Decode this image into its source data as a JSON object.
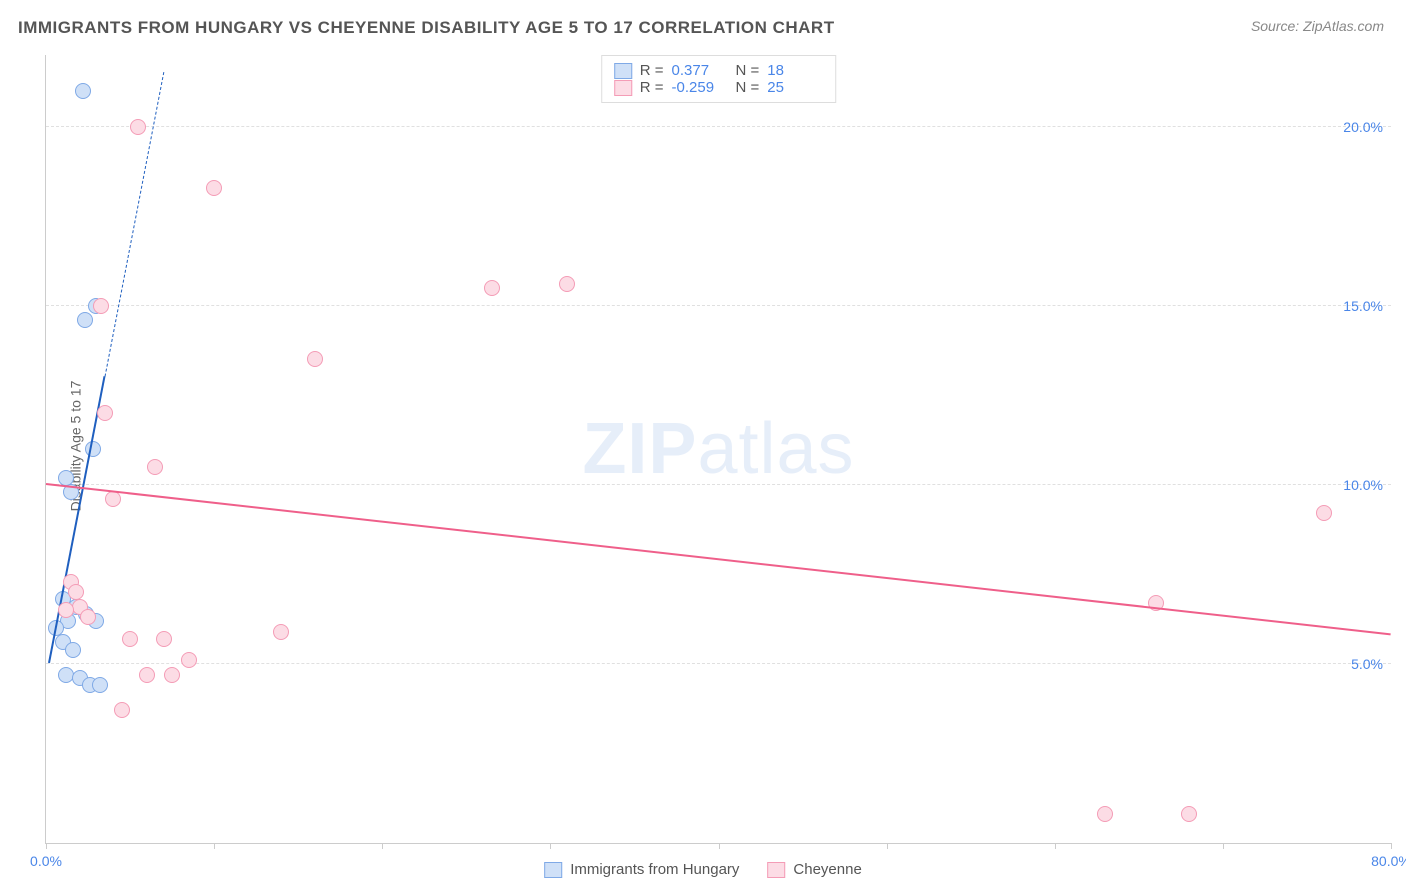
{
  "title": "IMMIGRANTS FROM HUNGARY VS CHEYENNE DISABILITY AGE 5 TO 17 CORRELATION CHART",
  "source": "Source: ZipAtlas.com",
  "ylabel": "Disability Age 5 to 17",
  "watermark_zip": "ZIP",
  "watermark_atlas": "atlas",
  "chart": {
    "type": "scatter",
    "background_color": "#ffffff",
    "grid_color": "#e0e0e0",
    "axis_color": "#cccccc",
    "label_color": "#4a86e8",
    "xlim": [
      0,
      80
    ],
    "ylim": [
      0,
      22
    ],
    "xtick_positions": [
      0,
      10,
      20,
      30,
      40,
      50,
      60,
      70,
      80
    ],
    "xtick_labels": {
      "0": "0.0%",
      "80": "80.0%"
    },
    "ytick_positions": [
      5,
      10,
      15,
      20
    ],
    "ytick_labels": {
      "5": "5.0%",
      "10": "10.0%",
      "15": "15.0%",
      "20": "20.0%"
    },
    "marker_radius": 8
  },
  "series": [
    {
      "key": "hungary",
      "label": "Immigrants from Hungary",
      "R": "0.377",
      "N": "18",
      "color_fill": "#cfe0f7",
      "color_stroke": "#7fa9e6",
      "trend_color": "#1f5fbf",
      "trend_solid": {
        "x1": 0.2,
        "y1": 5.0,
        "x2": 3.5,
        "y2": 13.0
      },
      "trend_dash": {
        "x1": 3.5,
        "y1": 13.0,
        "x2": 7.0,
        "y2": 21.5
      },
      "points": [
        {
          "x": 2.2,
          "y": 21.0
        },
        {
          "x": 2.3,
          "y": 14.6
        },
        {
          "x": 3.0,
          "y": 15.0
        },
        {
          "x": 2.8,
          "y": 11.0
        },
        {
          "x": 1.2,
          "y": 10.2
        },
        {
          "x": 1.5,
          "y": 9.8
        },
        {
          "x": 1.0,
          "y": 6.8
        },
        {
          "x": 1.8,
          "y": 6.6
        },
        {
          "x": 2.4,
          "y": 6.4
        },
        {
          "x": 1.3,
          "y": 6.2
        },
        {
          "x": 0.6,
          "y": 6.0
        },
        {
          "x": 1.0,
          "y": 5.6
        },
        {
          "x": 1.6,
          "y": 5.4
        },
        {
          "x": 3.0,
          "y": 6.2
        },
        {
          "x": 1.2,
          "y": 4.7
        },
        {
          "x": 2.0,
          "y": 4.6
        },
        {
          "x": 2.6,
          "y": 4.4
        },
        {
          "x": 3.2,
          "y": 4.4
        }
      ]
    },
    {
      "key": "cheyenne",
      "label": "Cheyenne",
      "R": "-0.259",
      "N": "25",
      "color_fill": "#fcdce5",
      "color_stroke": "#f49cb6",
      "trend_color": "#ef5f8a",
      "trend_solid": {
        "x1": 0.0,
        "y1": 10.0,
        "x2": 80.0,
        "y2": 5.8
      },
      "points": [
        {
          "x": 5.5,
          "y": 20.0
        },
        {
          "x": 10.0,
          "y": 18.3
        },
        {
          "x": 26.5,
          "y": 15.5
        },
        {
          "x": 31.0,
          "y": 15.6
        },
        {
          "x": 3.3,
          "y": 15.0
        },
        {
          "x": 16.0,
          "y": 13.5
        },
        {
          "x": 3.5,
          "y": 12.0
        },
        {
          "x": 6.5,
          "y": 10.5
        },
        {
          "x": 4.0,
          "y": 9.6
        },
        {
          "x": 76.0,
          "y": 9.2
        },
        {
          "x": 1.5,
          "y": 7.3
        },
        {
          "x": 2.0,
          "y": 6.6
        },
        {
          "x": 66.0,
          "y": 6.7
        },
        {
          "x": 14.0,
          "y": 5.9
        },
        {
          "x": 5.0,
          "y": 5.7
        },
        {
          "x": 7.0,
          "y": 5.7
        },
        {
          "x": 8.5,
          "y": 5.1
        },
        {
          "x": 6.0,
          "y": 4.7
        },
        {
          "x": 7.5,
          "y": 4.7
        },
        {
          "x": 4.5,
          "y": 3.7
        },
        {
          "x": 1.2,
          "y": 6.5
        },
        {
          "x": 2.5,
          "y": 6.3
        },
        {
          "x": 63.0,
          "y": 0.8
        },
        {
          "x": 68.0,
          "y": 0.8
        },
        {
          "x": 1.8,
          "y": 7.0
        }
      ]
    }
  ],
  "legend_top_labels": {
    "R": "R  =",
    "N": "N  ="
  }
}
